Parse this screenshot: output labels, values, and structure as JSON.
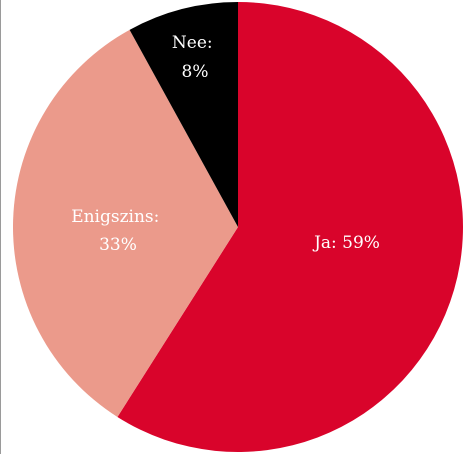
{
  "chart_data": {
    "type": "pie",
    "title": "",
    "slices": [
      {
        "label": "Ja",
        "value": 59,
        "display": "Ja: 59%",
        "color": "#d9042b",
        "text_color": "#ffffff"
      },
      {
        "label": "Enigszins",
        "value": 33,
        "display_lines": [
          "Enigszins:",
          "33%"
        ],
        "color": "#eb9a8b",
        "text_color": "#ffffff"
      },
      {
        "label": "Nee",
        "value": 8,
        "display_lines": [
          "Nee:",
          "8%"
        ],
        "color": "#000000",
        "text_color": "#ffffff"
      }
    ],
    "start": "12 o'clock",
    "direction": "clockwise"
  }
}
